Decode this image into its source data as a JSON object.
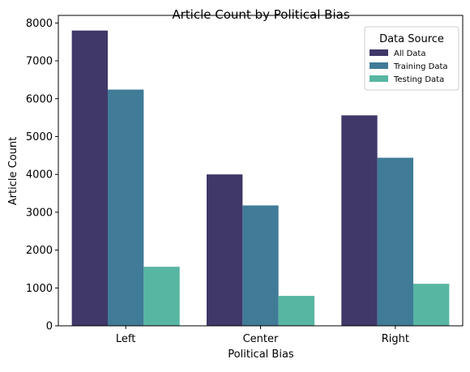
{
  "chart_data": {
    "type": "bar",
    "title": "Article Count by Political Bias",
    "xlabel": "Political Bias",
    "ylabel": "Article Count",
    "categories": [
      "Left",
      "Center",
      "Right"
    ],
    "series": [
      {
        "name": "All Data",
        "values": [
          7800,
          4000,
          5560
        ],
        "color": "#3f3868"
      },
      {
        "name": "Training Data",
        "values": [
          6240,
          3180,
          4440
        ],
        "color": "#407b98"
      },
      {
        "name": "Testing Data",
        "values": [
          1560,
          790,
          1110
        ],
        "color": "#57b6a2"
      }
    ],
    "ylim": [
      0,
      8200
    ],
    "yticks": [
      0,
      1000,
      2000,
      3000,
      4000,
      5000,
      6000,
      7000,
      8000
    ],
    "legend": {
      "title": "Data Source",
      "placement": "top-right"
    },
    "grid": false
  }
}
